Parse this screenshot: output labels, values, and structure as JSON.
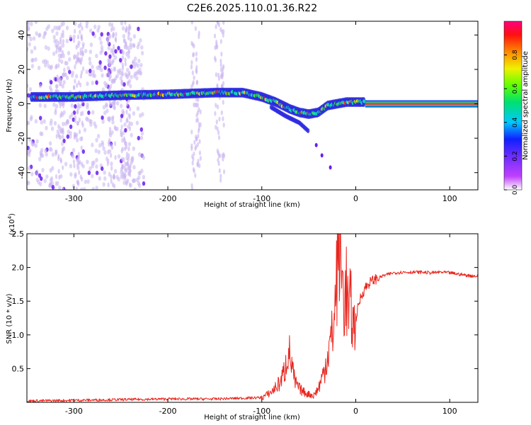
{
  "title": "C2E6.2025.110.01.36.R22",
  "colors": {
    "snr_line": "#e8261e",
    "spectro_trace": "#2a27e0",
    "spectro_background": "#c9b4f0"
  },
  "colorbar": {
    "label": "Normalized spectral amplitude",
    "ticks": [
      {
        "value": 0.0,
        "label": "0.0"
      },
      {
        "value": 0.2,
        "label": "0.2"
      },
      {
        "value": 0.4,
        "label": "0.4"
      },
      {
        "value": 0.6,
        "label": "0.6"
      },
      {
        "value": 0.8,
        "label": "0.8"
      }
    ],
    "range": [
      0,
      1
    ]
  },
  "chart_data": [
    {
      "type": "heatmap",
      "title": "C2E6.2025.110.01.36.R22",
      "xlabel": "Height of straight line (km)",
      "ylabel": "Frequency (Hz)",
      "xlim": [
        -350,
        130
      ],
      "ylim": [
        -50,
        48
      ],
      "xticks": [
        {
          "value": -300,
          "label": "-300"
        },
        {
          "value": -200,
          "label": "-200"
        },
        {
          "value": -100,
          "label": "-100"
        },
        {
          "value": 0,
          "label": "0"
        },
        {
          "value": 100,
          "label": "100"
        }
      ],
      "yticks": [
        {
          "value": -40,
          "label": "-40"
        },
        {
          "value": -20,
          "label": "-20"
        },
        {
          "value": 0,
          "label": "0"
        },
        {
          "value": 20,
          "label": "20"
        },
        {
          "value": 40,
          "label": "40"
        }
      ],
      "ridge": {
        "x": [
          -345,
          -300,
          -250,
          -200,
          -150,
          -120,
          -100,
          -85,
          -70,
          -60,
          -50,
          -40,
          -30,
          -20,
          -10,
          0,
          10
        ],
        "y": [
          4,
          4,
          5,
          5.5,
          6.5,
          6.5,
          4,
          1,
          -3,
          -5,
          -6,
          -5,
          -1,
          0,
          1,
          1,
          1
        ]
      },
      "lower_branch": {
        "x": [
          -90,
          -75,
          -60,
          -50
        ],
        "y": [
          -2,
          -7,
          -11,
          -16
        ]
      },
      "tone": {
        "x_start": 10,
        "x_end": 130,
        "y": 0
      },
      "low_snr_noise_regions": [
        [
          -350,
          -225
        ]
      ],
      "noise_stripes_x": [
        -315,
        -295,
        -260,
        -245,
        -170,
        -145
      ],
      "isolated_points": [
        [
          -42,
          -24
        ],
        [
          -36,
          -30
        ],
        [
          -27,
          -37
        ]
      ]
    },
    {
      "type": "line",
      "xlabel": "Height of straight line (km)",
      "ylabel": "SNR (10 * v/v)",
      "y_multiplier": "(x10",
      "y_multiplier_exp": "4",
      "y_multiplier_close": ")",
      "xlim": [
        -350,
        130
      ],
      "ylim": [
        0,
        2.5
      ],
      "xticks": [
        {
          "value": -300,
          "label": "-300"
        },
        {
          "value": -200,
          "label": "-200"
        },
        {
          "value": -100,
          "label": "-100"
        },
        {
          "value": 0,
          "label": "0"
        },
        {
          "value": 100,
          "label": "100"
        }
      ],
      "yticks": [
        {
          "value": 0.5,
          "label": "0.5"
        },
        {
          "value": 1.0,
          "label": "1.0"
        },
        {
          "value": 1.5,
          "label": "1.5"
        },
        {
          "value": 2.0,
          "label": "2.0"
        },
        {
          "value": 2.5,
          "label": "2.5"
        }
      ],
      "series": [
        {
          "x": [
            -350,
            -300,
            -250,
            -200,
            -150,
            -100,
            -90,
            -80,
            -75,
            -72,
            -68,
            -65,
            -60,
            -55,
            -50,
            -45,
            -40,
            -35,
            -30,
            -25,
            -22,
            -20,
            -18,
            -15,
            -12,
            -10,
            -8,
            -5,
            -2,
            0,
            5,
            10,
            15,
            20,
            25,
            30,
            40,
            50,
            60,
            70,
            80,
            90,
            100,
            110,
            120,
            130
          ],
          "y": [
            0.02,
            0.03,
            0.04,
            0.05,
            0.05,
            0.07,
            0.15,
            0.3,
            0.5,
            0.8,
            0.55,
            0.3,
            0.2,
            0.15,
            0.12,
            0.1,
            0.2,
            0.4,
            0.7,
            1.0,
            1.4,
            2.0,
            2.45,
            1.9,
            1.5,
            1.7,
            1.3,
            1.4,
            1.1,
            1.25,
            1.55,
            1.7,
            1.78,
            1.82,
            1.85,
            1.88,
            1.92,
            1.93,
            1.93,
            1.93,
            1.92,
            1.93,
            1.92,
            1.9,
            1.88,
            1.87
          ]
        }
      ]
    }
  ]
}
